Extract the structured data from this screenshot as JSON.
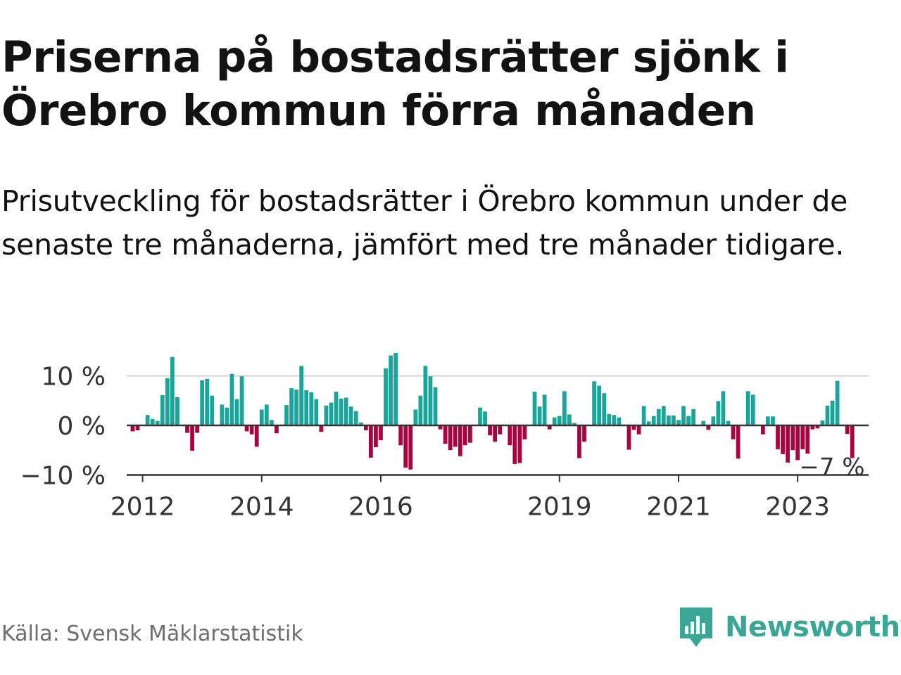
{
  "header": {
    "title": "Priserna på bostadsrätter sjönk i Örebro kommun förra månaden",
    "subtitle": "Prisutveckling för bostadsrätter i Örebro kommun under de senaste tre månaderna, jämfört med tre månader tidigare."
  },
  "footer": {
    "source": "Källa: Svensk Mäklarstatistik",
    "brand": "Newsworthy"
  },
  "colors": {
    "positive": "#1aa59a",
    "negative": "#a8053f",
    "gridline": "#dddddd",
    "baseline": "#333333",
    "brand": "#3aa796"
  },
  "icons": {
    "logo": "bar-chart-speech-bubble-icon"
  },
  "chart_data": {
    "type": "bar",
    "x_unit": "month",
    "start": "2011-11",
    "end": "2023-11",
    "ylim": [
      -10,
      15
    ],
    "yticks": [
      10,
      0,
      -10
    ],
    "ytick_labels": [
      "10 %",
      "0 %",
      "−10 %"
    ],
    "xticks": [
      "2012",
      "2014",
      "2016",
      "2019",
      "2021",
      "2023"
    ],
    "annotation": "−7 %",
    "grid": true,
    "values": [
      -1.2,
      -1.0,
      0.0,
      2.1,
      1.3,
      0.9,
      6.1,
      9.5,
      13.8,
      5.7,
      0.0,
      -1.5,
      -5.1,
      -1.5,
      9.1,
      9.4,
      6.0,
      0.0,
      4.2,
      3.6,
      10.4,
      5.3,
      9.9,
      -1.2,
      -1.8,
      -4.3,
      3.2,
      4.2,
      1.1,
      -1.6,
      0.0,
      4.1,
      7.5,
      7.2,
      12.0,
      7.1,
      6.7,
      5.3,
      -1.3,
      4.0,
      4.6,
      6.8,
      5.4,
      5.6,
      3.8,
      2.9,
      0.6,
      -1.0,
      -6.5,
      -4.4,
      -3.0,
      11.5,
      14.1,
      14.6,
      -4.0,
      -8.5,
      -8.9,
      3.2,
      6.0,
      12.0,
      9.9,
      7.7,
      -0.8,
      -3.7,
      -5.0,
      -4.3,
      -6.2,
      -4.0,
      -3.5,
      0.0,
      3.6,
      2.8,
      -2.0,
      -3.3,
      -1.8,
      0.0,
      -4.0,
      -7.8,
      -7.6,
      -2.8,
      0.0,
      6.8,
      3.8,
      6.2,
      -0.8,
      1.6,
      1.9,
      6.9,
      2.2,
      0.5,
      -6.6,
      -3.3,
      0.0,
      8.9,
      8.0,
      6.5,
      2.3,
      2.1,
      1.6,
      0.0,
      -4.9,
      -0.9,
      -1.8,
      3.9,
      0.8,
      1.9,
      3.3,
      3.9,
      2.0,
      2.0,
      1.1,
      3.9,
      1.9,
      3.3,
      0.0,
      0.9,
      -0.9,
      1.8,
      4.9,
      6.9,
      0.9,
      -2.8,
      -6.7,
      0.0,
      6.9,
      6.2,
      0.0,
      -1.8,
      1.8,
      1.8,
      -4.8,
      -5.8,
      -7.5,
      -5.0,
      -7.0,
      -4.8,
      -5.7,
      -0.8,
      -0.6,
      1.0,
      4.0,
      5.0,
      9.0,
      0.0,
      -1.7,
      -6.6
    ]
  }
}
